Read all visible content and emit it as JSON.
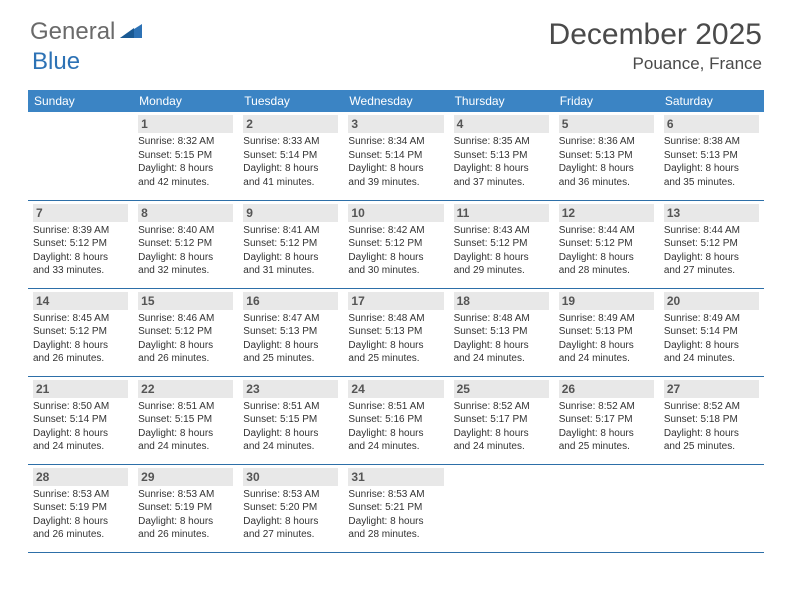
{
  "logo": {
    "text_gray": "General",
    "text_blue": "Blue"
  },
  "title": "December 2025",
  "location": "Pouance, France",
  "colors": {
    "header_bg": "#3b84c4",
    "header_text": "#ffffff",
    "daynum_bg": "#e8e8e8",
    "day_border": "#2d6fa8",
    "logo_gray": "#6a6a6a",
    "logo_blue": "#2d72b5"
  },
  "day_headers": [
    "Sunday",
    "Monday",
    "Tuesday",
    "Wednesday",
    "Thursday",
    "Friday",
    "Saturday"
  ],
  "weeks": [
    [
      null,
      {
        "n": "1",
        "sr": "Sunrise: 8:32 AM",
        "ss": "Sunset: 5:15 PM",
        "d1": "Daylight: 8 hours",
        "d2": "and 42 minutes."
      },
      {
        "n": "2",
        "sr": "Sunrise: 8:33 AM",
        "ss": "Sunset: 5:14 PM",
        "d1": "Daylight: 8 hours",
        "d2": "and 41 minutes."
      },
      {
        "n": "3",
        "sr": "Sunrise: 8:34 AM",
        "ss": "Sunset: 5:14 PM",
        "d1": "Daylight: 8 hours",
        "d2": "and 39 minutes."
      },
      {
        "n": "4",
        "sr": "Sunrise: 8:35 AM",
        "ss": "Sunset: 5:13 PM",
        "d1": "Daylight: 8 hours",
        "d2": "and 37 minutes."
      },
      {
        "n": "5",
        "sr": "Sunrise: 8:36 AM",
        "ss": "Sunset: 5:13 PM",
        "d1": "Daylight: 8 hours",
        "d2": "and 36 minutes."
      },
      {
        "n": "6",
        "sr": "Sunrise: 8:38 AM",
        "ss": "Sunset: 5:13 PM",
        "d1": "Daylight: 8 hours",
        "d2": "and 35 minutes."
      }
    ],
    [
      {
        "n": "7",
        "sr": "Sunrise: 8:39 AM",
        "ss": "Sunset: 5:12 PM",
        "d1": "Daylight: 8 hours",
        "d2": "and 33 minutes."
      },
      {
        "n": "8",
        "sr": "Sunrise: 8:40 AM",
        "ss": "Sunset: 5:12 PM",
        "d1": "Daylight: 8 hours",
        "d2": "and 32 minutes."
      },
      {
        "n": "9",
        "sr": "Sunrise: 8:41 AM",
        "ss": "Sunset: 5:12 PM",
        "d1": "Daylight: 8 hours",
        "d2": "and 31 minutes."
      },
      {
        "n": "10",
        "sr": "Sunrise: 8:42 AM",
        "ss": "Sunset: 5:12 PM",
        "d1": "Daylight: 8 hours",
        "d2": "and 30 minutes."
      },
      {
        "n": "11",
        "sr": "Sunrise: 8:43 AM",
        "ss": "Sunset: 5:12 PM",
        "d1": "Daylight: 8 hours",
        "d2": "and 29 minutes."
      },
      {
        "n": "12",
        "sr": "Sunrise: 8:44 AM",
        "ss": "Sunset: 5:12 PM",
        "d1": "Daylight: 8 hours",
        "d2": "and 28 minutes."
      },
      {
        "n": "13",
        "sr": "Sunrise: 8:44 AM",
        "ss": "Sunset: 5:12 PM",
        "d1": "Daylight: 8 hours",
        "d2": "and 27 minutes."
      }
    ],
    [
      {
        "n": "14",
        "sr": "Sunrise: 8:45 AM",
        "ss": "Sunset: 5:12 PM",
        "d1": "Daylight: 8 hours",
        "d2": "and 26 minutes."
      },
      {
        "n": "15",
        "sr": "Sunrise: 8:46 AM",
        "ss": "Sunset: 5:12 PM",
        "d1": "Daylight: 8 hours",
        "d2": "and 26 minutes."
      },
      {
        "n": "16",
        "sr": "Sunrise: 8:47 AM",
        "ss": "Sunset: 5:13 PM",
        "d1": "Daylight: 8 hours",
        "d2": "and 25 minutes."
      },
      {
        "n": "17",
        "sr": "Sunrise: 8:48 AM",
        "ss": "Sunset: 5:13 PM",
        "d1": "Daylight: 8 hours",
        "d2": "and 25 minutes."
      },
      {
        "n": "18",
        "sr": "Sunrise: 8:48 AM",
        "ss": "Sunset: 5:13 PM",
        "d1": "Daylight: 8 hours",
        "d2": "and 24 minutes."
      },
      {
        "n": "19",
        "sr": "Sunrise: 8:49 AM",
        "ss": "Sunset: 5:13 PM",
        "d1": "Daylight: 8 hours",
        "d2": "and 24 minutes."
      },
      {
        "n": "20",
        "sr": "Sunrise: 8:49 AM",
        "ss": "Sunset: 5:14 PM",
        "d1": "Daylight: 8 hours",
        "d2": "and 24 minutes."
      }
    ],
    [
      {
        "n": "21",
        "sr": "Sunrise: 8:50 AM",
        "ss": "Sunset: 5:14 PM",
        "d1": "Daylight: 8 hours",
        "d2": "and 24 minutes."
      },
      {
        "n": "22",
        "sr": "Sunrise: 8:51 AM",
        "ss": "Sunset: 5:15 PM",
        "d1": "Daylight: 8 hours",
        "d2": "and 24 minutes."
      },
      {
        "n": "23",
        "sr": "Sunrise: 8:51 AM",
        "ss": "Sunset: 5:15 PM",
        "d1": "Daylight: 8 hours",
        "d2": "and 24 minutes."
      },
      {
        "n": "24",
        "sr": "Sunrise: 8:51 AM",
        "ss": "Sunset: 5:16 PM",
        "d1": "Daylight: 8 hours",
        "d2": "and 24 minutes."
      },
      {
        "n": "25",
        "sr": "Sunrise: 8:52 AM",
        "ss": "Sunset: 5:17 PM",
        "d1": "Daylight: 8 hours",
        "d2": "and 24 minutes."
      },
      {
        "n": "26",
        "sr": "Sunrise: 8:52 AM",
        "ss": "Sunset: 5:17 PM",
        "d1": "Daylight: 8 hours",
        "d2": "and 25 minutes."
      },
      {
        "n": "27",
        "sr": "Sunrise: 8:52 AM",
        "ss": "Sunset: 5:18 PM",
        "d1": "Daylight: 8 hours",
        "d2": "and 25 minutes."
      }
    ],
    [
      {
        "n": "28",
        "sr": "Sunrise: 8:53 AM",
        "ss": "Sunset: 5:19 PM",
        "d1": "Daylight: 8 hours",
        "d2": "and 26 minutes."
      },
      {
        "n": "29",
        "sr": "Sunrise: 8:53 AM",
        "ss": "Sunset: 5:19 PM",
        "d1": "Daylight: 8 hours",
        "d2": "and 26 minutes."
      },
      {
        "n": "30",
        "sr": "Sunrise: 8:53 AM",
        "ss": "Sunset: 5:20 PM",
        "d1": "Daylight: 8 hours",
        "d2": "and 27 minutes."
      },
      {
        "n": "31",
        "sr": "Sunrise: 8:53 AM",
        "ss": "Sunset: 5:21 PM",
        "d1": "Daylight: 8 hours",
        "d2": "and 28 minutes."
      },
      null,
      null,
      null
    ]
  ]
}
